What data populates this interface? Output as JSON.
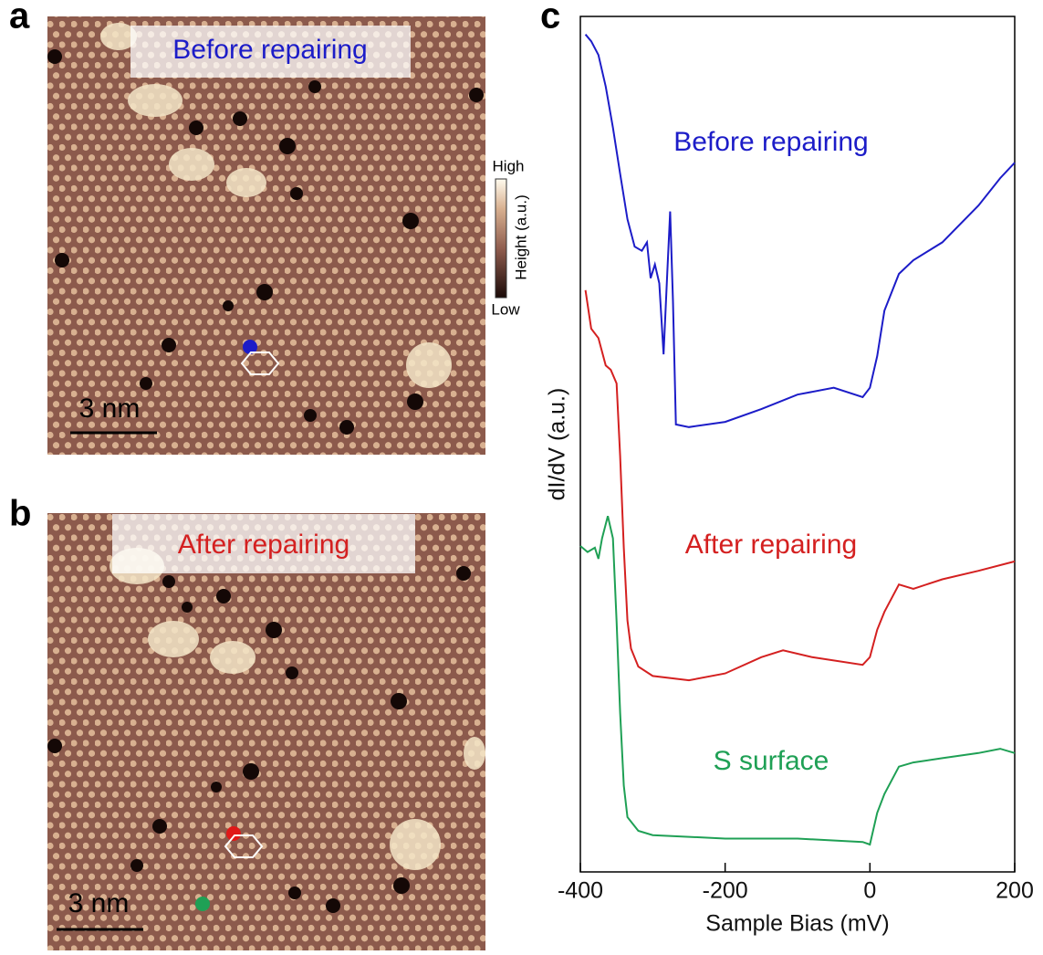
{
  "panels": {
    "a": {
      "letter": "a",
      "label": "Before repairing",
      "scale_bar": "3 nm",
      "colorbar": {
        "high": "High",
        "low": "Low",
        "title": "Height (a.u.)"
      }
    },
    "b": {
      "letter": "b",
      "label": "After repairing",
      "scale_bar": "3 nm"
    },
    "c": {
      "letter": "c"
    }
  },
  "chart_data": {
    "type": "line",
    "x_label": "Sample Bias (mV)",
    "y_label": "dI/dV (a.u.)",
    "xlim": [
      -400,
      200
    ],
    "xticks": [
      -400,
      -200,
      0,
      200
    ],
    "ylim": [
      0,
      100
    ],
    "series": [
      {
        "name": "Before repairing",
        "color": "#1c1cc8",
        "x": [
          -393,
          -385,
          -375,
          -365,
          -355,
          -345,
          -335,
          -325,
          -315,
          -308,
          -303,
          -297,
          -291,
          -285,
          -280,
          -276,
          -272,
          -268,
          -250,
          -200,
          -150,
          -100,
          -50,
          -10,
          0,
          10,
          20,
          40,
          60,
          100,
          150,
          180,
          200
        ],
        "values": [
          97.9,
          97.1,
          95.5,
          91.8,
          87.0,
          81.6,
          76.3,
          73.1,
          72.6,
          73.6,
          69.4,
          71.0,
          68.8,
          60.5,
          69.9,
          77.2,
          66.7,
          52.3,
          52.0,
          52.6,
          54.1,
          55.8,
          56.6,
          55.5,
          56.6,
          60.3,
          65.6,
          69.9,
          71.5,
          73.6,
          77.9,
          81.1,
          82.9
        ]
      },
      {
        "name": "After repairing",
        "color": "#d42020",
        "x": [
          -393,
          -385,
          -375,
          -365,
          -358,
          -350,
          -345,
          -340,
          -335,
          -330,
          -320,
          -300,
          -250,
          -200,
          -150,
          -120,
          -80,
          -10,
          0,
          10,
          20,
          40,
          60,
          100,
          150,
          200
        ],
        "values": [
          68.0,
          63.5,
          62.4,
          59.2,
          58.7,
          57.1,
          48.6,
          37.9,
          29.4,
          26.1,
          24.0,
          22.9,
          22.4,
          23.2,
          25.1,
          25.9,
          25.1,
          24.2,
          25.1,
          28.3,
          30.4,
          33.6,
          33.1,
          34.2,
          35.2,
          36.3
        ]
      },
      {
        "name": "S surface",
        "color": "#1fa055",
        "x": [
          -400,
          -390,
          -380,
          -375,
          -370,
          -362,
          -355,
          -350,
          -345,
          -340,
          -335,
          -320,
          -300,
          -200,
          -100,
          -10,
          0,
          10,
          20,
          40,
          60,
          100,
          150,
          180,
          200
        ],
        "values": [
          38.1,
          37.4,
          37.9,
          36.6,
          39.0,
          41.6,
          39.0,
          29.3,
          18.6,
          10.1,
          6.4,
          4.8,
          4.3,
          3.9,
          3.9,
          3.5,
          3.2,
          6.9,
          9.1,
          12.3,
          12.8,
          13.3,
          13.9,
          14.4,
          13.9
        ]
      }
    ]
  }
}
